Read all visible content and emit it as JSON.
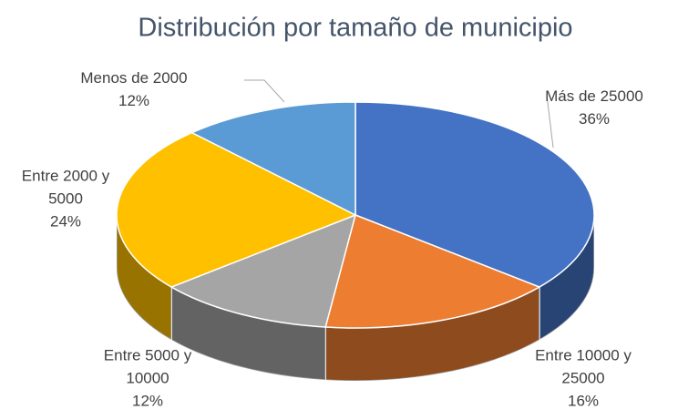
{
  "chart_data": {
    "type": "pie",
    "title": "Distribución por tamaño de municipio",
    "categories": [
      "Más de 25000",
      "Entre 10000 y 25000",
      "Entre 5000 y 10000",
      "Entre 2000 y 5000",
      "Menos de 2000"
    ],
    "values": [
      36,
      16,
      12,
      24,
      12
    ],
    "value_labels": [
      "36%",
      "16%",
      "12%",
      "24%",
      "12%"
    ],
    "colors": [
      "#4472c4",
      "#ed7d31",
      "#a5a5a5",
      "#ffc000",
      "#5b9bd5"
    ]
  }
}
